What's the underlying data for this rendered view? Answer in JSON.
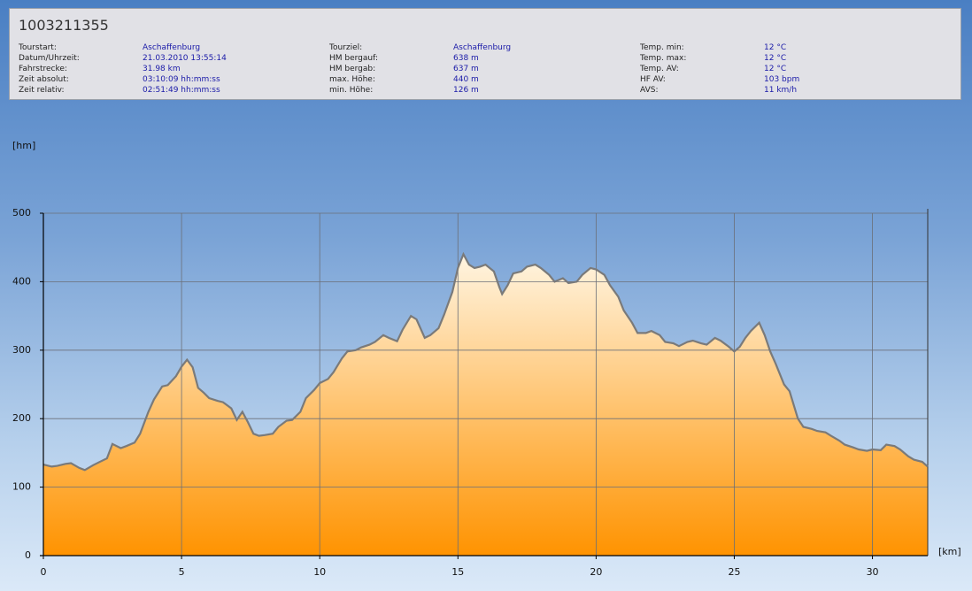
{
  "header": {
    "title": "1003211355",
    "columns": [
      [
        [
          "Tourstart:",
          "Aschaffenburg"
        ],
        [
          "Datum/Uhrzeit:",
          "21.03.2010 13:55:14"
        ],
        [
          "Fahrstrecke:",
          "31.98 km"
        ],
        [
          "Zeit absolut:",
          "03:10:09 hh:mm:ss"
        ],
        [
          "Zeit relativ:",
          "02:51:49 hh:mm:ss"
        ]
      ],
      [
        [
          "Tourziel:",
          "Aschaffenburg"
        ],
        [
          "HM bergauf:",
          "638 m"
        ],
        [
          "HM bergab:",
          "637 m"
        ],
        [
          "max. Höhe:",
          "440 m"
        ],
        [
          "min. Höhe:",
          "126 m"
        ]
      ],
      [
        [
          "Temp. min:",
          "12 °C"
        ],
        [
          "Temp. max:",
          "12 °C"
        ],
        [
          "Temp. AV:",
          "12 °C"
        ],
        [
          "HF AV:",
          "103 bpm"
        ],
        [
          "AVS:",
          "11 km/h"
        ]
      ]
    ]
  },
  "chart_data": {
    "type": "area",
    "y_label": "[hm]",
    "x_label": "[km]",
    "line_color": "#7a7a7a",
    "fill_top": "#fff5e2",
    "fill_bottom": "#ff9300",
    "grid": true,
    "xlim": [
      0,
      32
    ],
    "ylim": [
      0,
      500
    ],
    "xticks": [
      0,
      5,
      10,
      15,
      20,
      25,
      30
    ],
    "yticks": [
      0,
      100,
      200,
      300,
      400,
      500
    ],
    "x": [
      0,
      0.3,
      0.5,
      0.8,
      1.0,
      1.3,
      1.5,
      1.8,
      2.0,
      2.3,
      2.5,
      2.8,
      3.0,
      3.3,
      3.5,
      3.8,
      4.0,
      4.3,
      4.5,
      4.8,
      5.0,
      5.2,
      5.4,
      5.6,
      5.8,
      6.0,
      6.3,
      6.5,
      6.8,
      7.0,
      7.2,
      7.4,
      7.6,
      7.8,
      8.0,
      8.3,
      8.5,
      8.8,
      9.0,
      9.3,
      9.5,
      9.8,
      10.0,
      10.3,
      10.5,
      10.8,
      11.0,
      11.3,
      11.5,
      11.8,
      12.0,
      12.3,
      12.5,
      12.8,
      13.0,
      13.3,
      13.5,
      13.8,
      14.0,
      14.3,
      14.5,
      14.8,
      15.0,
      15.2,
      15.4,
      15.6,
      15.8,
      16.0,
      16.3,
      16.5,
      16.6,
      16.8,
      17.0,
      17.3,
      17.5,
      17.8,
      18.0,
      18.3,
      18.5,
      18.8,
      19.0,
      19.3,
      19.5,
      19.8,
      20.0,
      20.3,
      20.5,
      20.8,
      21.0,
      21.3,
      21.5,
      21.8,
      22.0,
      22.3,
      22.5,
      22.8,
      23.0,
      23.3,
      23.5,
      23.8,
      24.0,
      24.3,
      24.5,
      24.8,
      25.0,
      25.2,
      25.4,
      25.6,
      25.9,
      26.1,
      26.3,
      26.5,
      26.8,
      27.0,
      27.3,
      27.5,
      27.8,
      28.0,
      28.3,
      28.5,
      28.8,
      29.0,
      29.3,
      29.5,
      29.8,
      30.0,
      30.3,
      30.5,
      30.8,
      31.0,
      31.3,
      31.5,
      31.8,
      32.0
    ],
    "values": [
      133,
      130,
      131,
      134,
      135,
      128,
      125,
      132,
      136,
      142,
      163,
      157,
      160,
      165,
      178,
      210,
      228,
      247,
      249,
      262,
      276,
      286,
      275,
      245,
      238,
      230,
      226,
      224,
      215,
      198,
      210,
      195,
      178,
      175,
      176,
      178,
      188,
      197,
      198,
      210,
      230,
      242,
      252,
      258,
      268,
      288,
      298,
      300,
      304,
      308,
      312,
      322,
      318,
      313,
      330,
      350,
      345,
      318,
      322,
      332,
      352,
      385,
      420,
      440,
      425,
      420,
      422,
      425,
      415,
      392,
      382,
      395,
      412,
      415,
      422,
      425,
      420,
      410,
      400,
      405,
      398,
      400,
      410,
      420,
      418,
      410,
      395,
      378,
      358,
      340,
      325,
      325,
      328,
      322,
      312,
      310,
      306,
      312,
      314,
      310,
      308,
      318,
      314,
      305,
      298,
      305,
      318,
      328,
      340,
      322,
      298,
      280,
      250,
      240,
      200,
      188,
      185,
      182,
      180,
      175,
      168,
      162,
      158,
      155,
      153,
      155,
      154,
      162,
      160,
      155,
      145,
      140,
      137,
      130
    ]
  }
}
